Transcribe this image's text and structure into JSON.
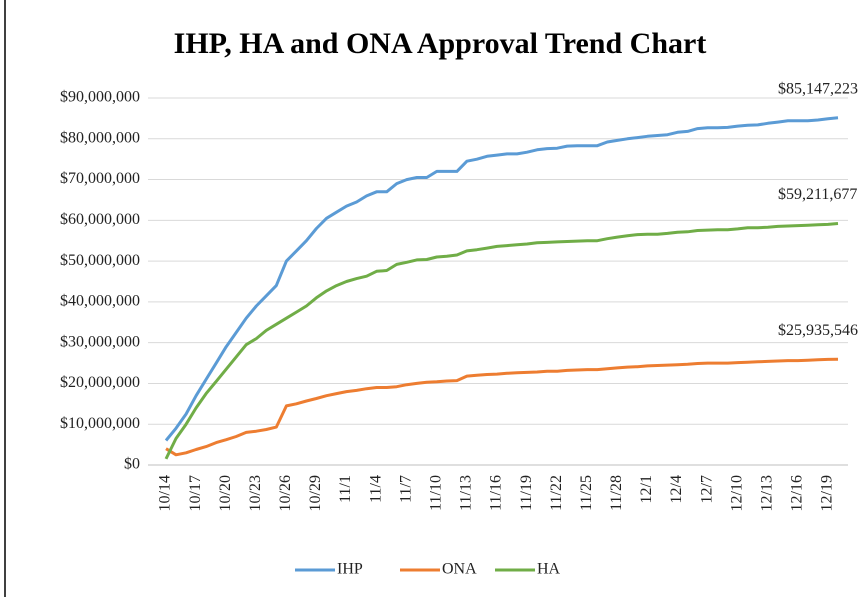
{
  "chart_data": {
    "type": "line",
    "title": "IHP, HA and ONA Approval Trend Chart",
    "categories": [
      "10/14",
      null,
      null,
      "10/17",
      null,
      null,
      "10/20",
      null,
      null,
      "10/23",
      null,
      null,
      "10/26",
      null,
      null,
      "10/29",
      null,
      null,
      "11/1",
      null,
      null,
      "11/4",
      null,
      null,
      "11/7",
      null,
      null,
      "11/10",
      null,
      null,
      "11/13",
      null,
      null,
      "11/16",
      null,
      null,
      "11/19",
      null,
      null,
      "11/22",
      null,
      null,
      "11/25",
      null,
      null,
      "11/28",
      null,
      null,
      "12/1",
      null,
      null,
      "12/4",
      null,
      null,
      "12/7",
      null,
      null,
      "12/10",
      null,
      null,
      "12/13",
      null,
      null,
      "12/16",
      null,
      null,
      "12/19",
      null
    ],
    "series": [
      {
        "name": "IHP",
        "color": "#5b9bd5",
        "values": [
          6000000,
          9000000,
          12500000,
          17000000,
          21000000,
          25000000,
          29000000,
          32500000,
          36000000,
          39000000,
          41500000,
          44000000,
          50000000,
          52500000,
          55000000,
          58000000,
          60500000,
          62000000,
          63500000,
          64500000,
          66000000,
          67000000,
          67000000,
          69000000,
          70000000,
          70500000,
          70500000,
          72000000,
          72000000,
          72000000,
          74500000,
          75000000,
          75700000,
          76000000,
          76300000,
          76300000,
          76700000,
          77300000,
          77600000,
          77700000,
          78200000,
          78300000,
          78300000,
          78300000,
          79200000,
          79600000,
          80000000,
          80300000,
          80600000,
          80800000,
          81000000,
          81600000,
          81800000,
          82500000,
          82700000,
          82700000,
          82800000,
          83100000,
          83300000,
          83400000,
          83800000,
          84100000,
          84400000,
          84400000,
          84400000,
          84600000,
          84900000,
          85147223
        ],
        "value_labels": [
          null,
          null,
          null,
          null,
          null,
          null,
          null,
          null,
          null,
          null,
          null,
          null,
          null,
          null,
          null,
          null,
          null,
          null,
          null,
          null,
          null,
          null,
          null,
          null,
          null,
          null,
          null,
          null,
          null,
          null,
          null,
          null,
          null,
          null,
          null,
          null,
          null,
          null,
          null,
          null,
          null,
          null,
          null,
          null,
          null,
          null,
          null,
          null,
          null,
          null,
          null,
          null,
          null,
          null,
          null,
          null,
          null,
          null,
          null,
          null,
          null,
          null,
          null,
          null,
          null,
          null,
          null,
          "$85,147,223"
        ]
      },
      {
        "name": "ONA",
        "color": "#ed7d31",
        "values": [
          4000000,
          2500000,
          3000000,
          3800000,
          4500000,
          5500000,
          6200000,
          7000000,
          8000000,
          8300000,
          8700000,
          9300000,
          14500000,
          15000000,
          15700000,
          16300000,
          17000000,
          17500000,
          18000000,
          18300000,
          18700000,
          19000000,
          19000000,
          19200000,
          19700000,
          20000000,
          20300000,
          20400000,
          20600000,
          20700000,
          21800000,
          22000000,
          22200000,
          22300000,
          22500000,
          22600000,
          22700000,
          22800000,
          23000000,
          23000000,
          23200000,
          23300000,
          23400000,
          23400000,
          23600000,
          23800000,
          24000000,
          24100000,
          24300000,
          24400000,
          24500000,
          24600000,
          24700000,
          24900000,
          25000000,
          25000000,
          25000000,
          25100000,
          25200000,
          25300000,
          25400000,
          25500000,
          25600000,
          25600000,
          25700000,
          25800000,
          25900000,
          25935546
        ],
        "value_labels": [
          null,
          null,
          null,
          null,
          null,
          null,
          null,
          null,
          null,
          null,
          null,
          null,
          null,
          null,
          null,
          null,
          null,
          null,
          null,
          null,
          null,
          null,
          null,
          null,
          null,
          null,
          null,
          null,
          null,
          null,
          null,
          null,
          null,
          null,
          null,
          null,
          null,
          null,
          null,
          null,
          null,
          null,
          null,
          null,
          null,
          null,
          null,
          null,
          null,
          null,
          null,
          null,
          null,
          null,
          null,
          null,
          null,
          null,
          null,
          null,
          null,
          null,
          null,
          null,
          null,
          null,
          null,
          "$25,935,546"
        ]
      },
      {
        "name": "HA",
        "color": "#70ad47",
        "values": [
          1500000,
          6500000,
          10000000,
          14000000,
          17500000,
          20500000,
          23500000,
          26500000,
          29500000,
          31000000,
          33000000,
          34500000,
          36000000,
          37500000,
          39000000,
          41000000,
          42700000,
          44000000,
          45000000,
          45700000,
          46300000,
          47500000,
          47700000,
          49200000,
          49700000,
          50300000,
          50400000,
          51000000,
          51200000,
          51500000,
          52500000,
          52800000,
          53200000,
          53600000,
          53800000,
          54000000,
          54200000,
          54500000,
          54600000,
          54700000,
          54800000,
          54900000,
          55000000,
          55000000,
          55500000,
          55900000,
          56200000,
          56500000,
          56600000,
          56600000,
          56800000,
          57100000,
          57200000,
          57500000,
          57600000,
          57700000,
          57700000,
          57900000,
          58200000,
          58200000,
          58300000,
          58500000,
          58600000,
          58700000,
          58800000,
          58900000,
          59000000,
          59211677
        ],
        "value_labels": [
          null,
          null,
          null,
          null,
          null,
          null,
          null,
          null,
          null,
          null,
          null,
          null,
          null,
          null,
          null,
          null,
          null,
          null,
          null,
          null,
          null,
          null,
          null,
          null,
          null,
          null,
          null,
          null,
          null,
          null,
          null,
          null,
          null,
          null,
          null,
          null,
          null,
          null,
          null,
          null,
          null,
          null,
          null,
          null,
          null,
          null,
          null,
          null,
          null,
          null,
          null,
          null,
          null,
          null,
          null,
          null,
          null,
          null,
          null,
          null,
          null,
          null,
          null,
          null,
          null,
          null,
          null,
          "$59,211,677"
        ]
      }
    ],
    "ylim": [
      0,
      90000000
    ],
    "yticks": [
      {
        "value": 0,
        "label": "$0"
      },
      {
        "value": 10000000,
        "label": "$10,000,000"
      },
      {
        "value": 20000000,
        "label": "$20,000,000"
      },
      {
        "value": 30000000,
        "label": "$30,000,000"
      },
      {
        "value": 40000000,
        "label": "$40,000,000"
      },
      {
        "value": 50000000,
        "label": "$50,000,000"
      },
      {
        "value": 60000000,
        "label": "$60,000,000"
      },
      {
        "value": 70000000,
        "label": "$70,000,000"
      },
      {
        "value": 80000000,
        "label": "$80,000,000"
      },
      {
        "value": 90000000,
        "label": "$90,000,000"
      }
    ],
    "grid": true,
    "legend": "bottom"
  }
}
